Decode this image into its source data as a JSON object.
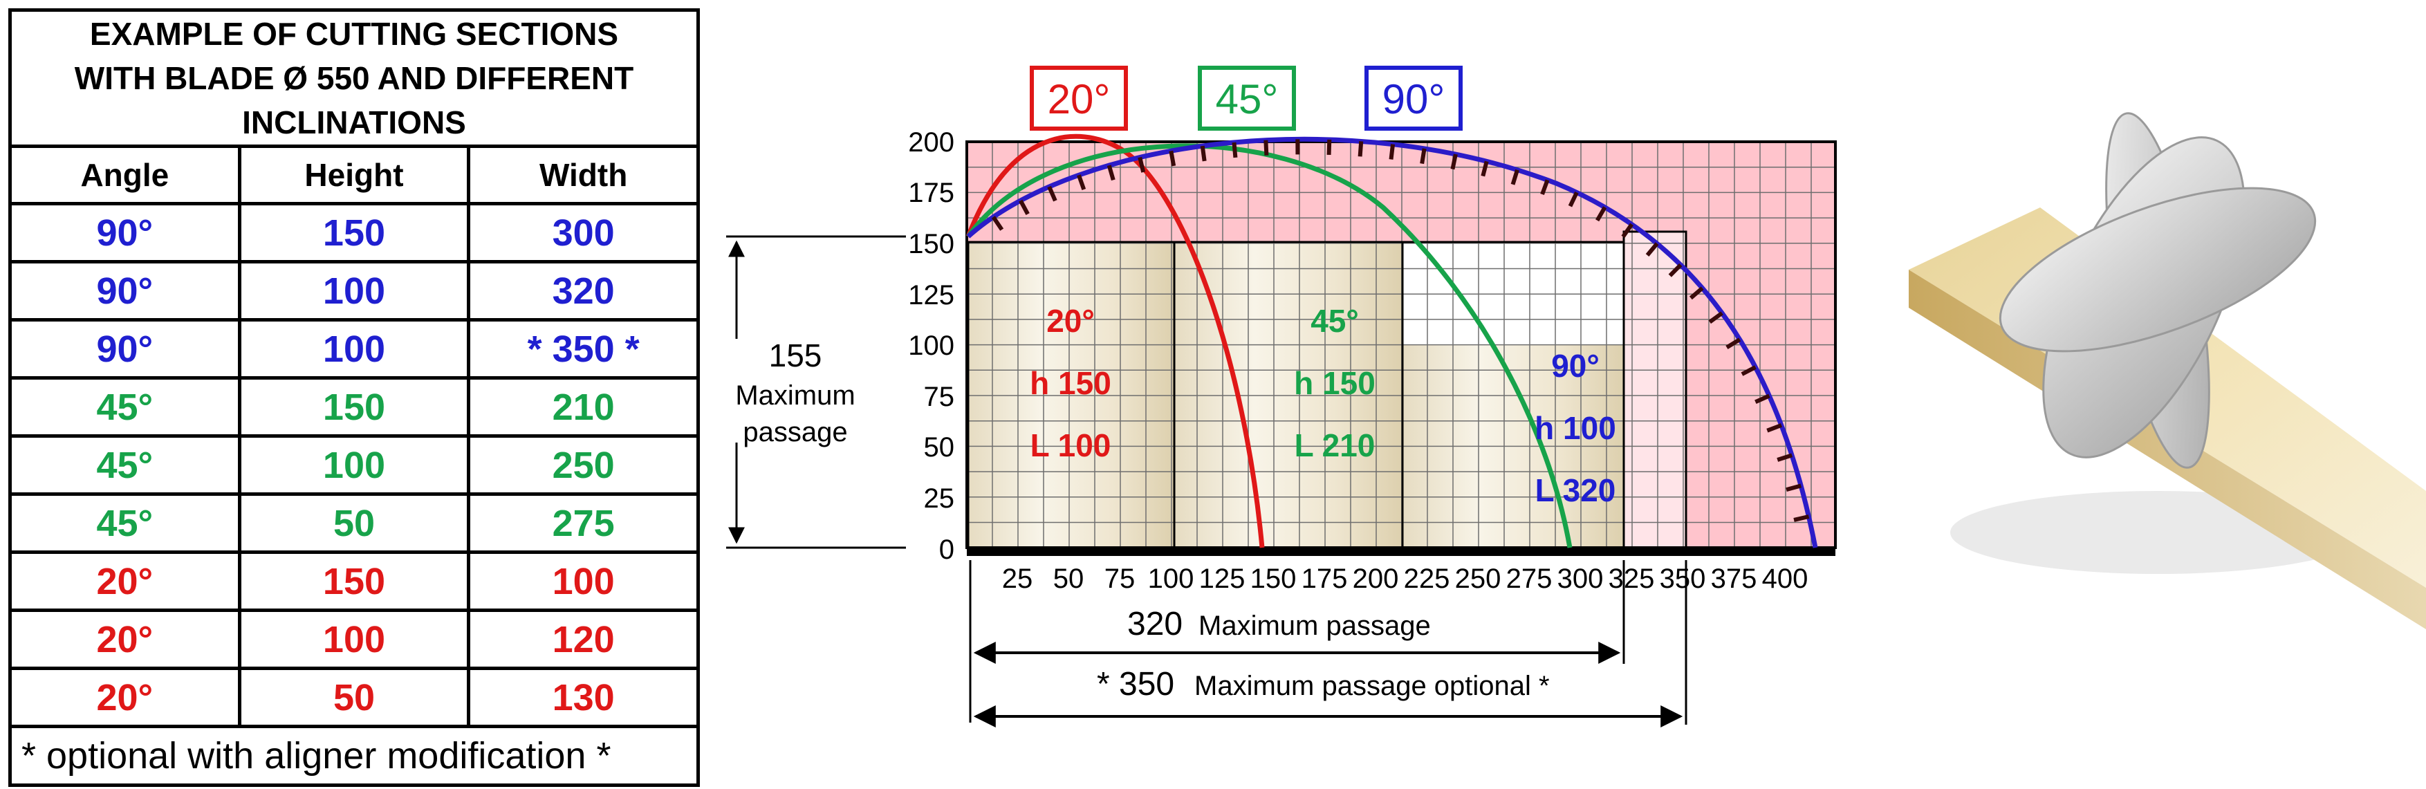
{
  "table": {
    "title_lines": [
      "EXAMPLE OF CUTTING SECTIONS",
      "WITH BLADE Ø 550 AND DIFFERENT",
      "INCLINATIONS"
    ],
    "headers": [
      "Angle",
      "Height",
      "Width"
    ],
    "rows": [
      {
        "angle": "90°",
        "height": "150",
        "width": "300",
        "color": "#1f1fd0"
      },
      {
        "angle": "90°",
        "height": "100",
        "width": "320",
        "color": "#1f1fd0"
      },
      {
        "angle": "90°",
        "height": "100",
        "width": "* 350 *",
        "color": "#1f1fd0"
      },
      {
        "angle": "45°",
        "height": "150",
        "width": "210",
        "color": "#17a34a"
      },
      {
        "angle": "45°",
        "height": "100",
        "width": "250",
        "color": "#17a34a"
      },
      {
        "angle": "45°",
        "height": "50",
        "width": "275",
        "color": "#17a34a"
      },
      {
        "angle": "20°",
        "height": "150",
        "width": "100",
        "color": "#e01818"
      },
      {
        "angle": "20°",
        "height": "100",
        "width": "120",
        "color": "#e01818"
      },
      {
        "angle": "20°",
        "height": "50",
        "width": "130",
        "color": "#e01818"
      }
    ],
    "footnote": "* optional with aligner modification *"
  },
  "diagram": {
    "legend": [
      {
        "label": "20°",
        "color": "#e01818"
      },
      {
        "label": "45°",
        "color": "#17a34a"
      },
      {
        "label": "90°",
        "color": "#1f1fd0"
      }
    ],
    "y_ticks": [
      "0",
      "25",
      "50",
      "75",
      "100",
      "125",
      "150",
      "175",
      "200"
    ],
    "x_ticks": [
      "25",
      "50",
      "75",
      "100",
      "125",
      "150",
      "175",
      "200",
      "225",
      "250",
      "275",
      "300",
      "325",
      "350",
      "375",
      "400"
    ],
    "height_dim": {
      "value": "155",
      "label_line1": "Maximum",
      "label_line2": "passage"
    },
    "width_dim_1": {
      "value": "320",
      "label": "Maximum passage"
    },
    "width_dim_2": {
      "value": "* 350",
      "label": "Maximum passage optional *"
    },
    "sections": [
      {
        "angle": "20°",
        "h": "h 150",
        "l": "L 100",
        "color": "#e01818"
      },
      {
        "angle": "45°",
        "h": "h 150",
        "l": "L 210",
        "color": "#17a34a"
      },
      {
        "angle": "90°",
        "h": "h 100",
        "l": "L 320",
        "color": "#1f1fd0"
      }
    ],
    "colors": {
      "background": "#ffc4cc",
      "wood_light": "#f8f4e8",
      "wood_dark": "#e0d4b4",
      "grid": "#777777"
    }
  }
}
